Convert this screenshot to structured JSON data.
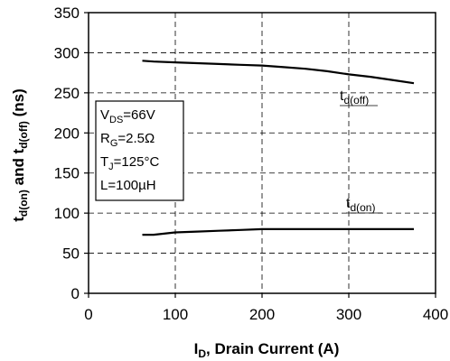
{
  "chart_data": {
    "type": "line",
    "xlabel": {
      "main": "I",
      "sub": "D",
      "rest": ", Drain Current (A)"
    },
    "ylabel": {
      "p1": "t",
      "s1": "d(on)",
      "p2": " and t",
      "s2": "d(off)",
      "p3": " (ns)"
    },
    "xlim": [
      0,
      400
    ],
    "ylim": [
      0,
      350
    ],
    "xticks": [
      0,
      100,
      200,
      300,
      400
    ],
    "yticks": [
      0,
      50,
      100,
      150,
      200,
      250,
      300,
      350
    ],
    "grid": true,
    "series": [
      {
        "name": "t_d(off)",
        "label_main": "t",
        "label_sub": "d(off)",
        "x": [
          62,
          75,
          100,
          125,
          150,
          175,
          200,
          225,
          250,
          275,
          300,
          325,
          350,
          375
        ],
        "y": [
          290,
          289,
          288,
          287,
          286,
          285,
          284,
          282,
          280,
          277,
          273,
          270,
          266,
          262
        ]
      },
      {
        "name": "t_d(on)",
        "label_main": "t",
        "label_sub": "d(on)",
        "x": [
          62,
          75,
          100,
          125,
          150,
          175,
          200,
          225,
          250,
          275,
          300,
          325,
          350,
          375
        ],
        "y": [
          73,
          73,
          76,
          77,
          78,
          79,
          80,
          80,
          80,
          80,
          80,
          80,
          80,
          80
        ]
      }
    ],
    "conditions": [
      {
        "main": "V",
        "sub": "DS",
        "rest": "=66V"
      },
      {
        "main": "R",
        "sub": "G",
        "rest": "=2.5Ω"
      },
      {
        "main": "T",
        "sub": "J",
        "rest": "=125°C"
      },
      {
        "main": "L",
        "sub": "",
        "rest": "=100µH"
      }
    ]
  }
}
